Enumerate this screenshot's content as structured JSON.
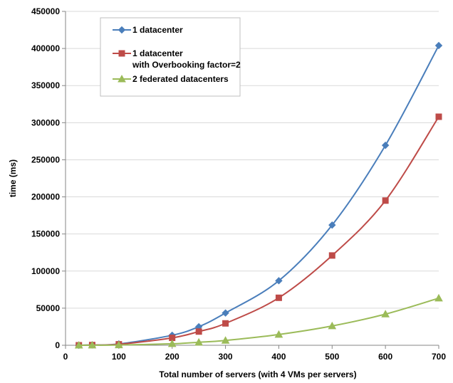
{
  "chart_data": {
    "type": "line",
    "xlabel": "Total number of servers (with 4 VMs per servers)",
    "ylabel": "time (ms)",
    "xlim": [
      0,
      700
    ],
    "ylim": [
      0,
      450000
    ],
    "xticks": [
      0,
      100,
      200,
      300,
      400,
      500,
      600,
      700
    ],
    "yticks": [
      0,
      50000,
      100000,
      150000,
      200000,
      250000,
      300000,
      350000,
      400000,
      450000
    ],
    "grid": "horizontal",
    "legend_position": "top-left",
    "series": [
      {
        "name": "1 datacenter",
        "color": "#4a7ebb",
        "marker": "diamond",
        "x": [
          25,
          50,
          100,
          200,
          250,
          300,
          400,
          500,
          600,
          700
        ],
        "y": [
          0,
          400,
          1800,
          13500,
          25000,
          43500,
          87000,
          162000,
          269500,
          404000
        ]
      },
      {
        "name": "1 datacenter\nwith Overbooking  factor=2",
        "color": "#be4b48",
        "marker": "square",
        "x": [
          25,
          50,
          100,
          200,
          250,
          300,
          400,
          500,
          600,
          700
        ],
        "y": [
          0,
          300,
          1300,
          10000,
          18500,
          29500,
          64000,
          121000,
          195000,
          308000
        ]
      },
      {
        "name": "2 federated datacenters",
        "color": "#9bbb59",
        "marker": "triangle",
        "x": [
          25,
          50,
          100,
          200,
          250,
          300,
          400,
          500,
          600,
          700
        ],
        "y": [
          0,
          100,
          400,
          2000,
          4000,
          6500,
          14500,
          26000,
          42000,
          63500
        ]
      }
    ]
  }
}
